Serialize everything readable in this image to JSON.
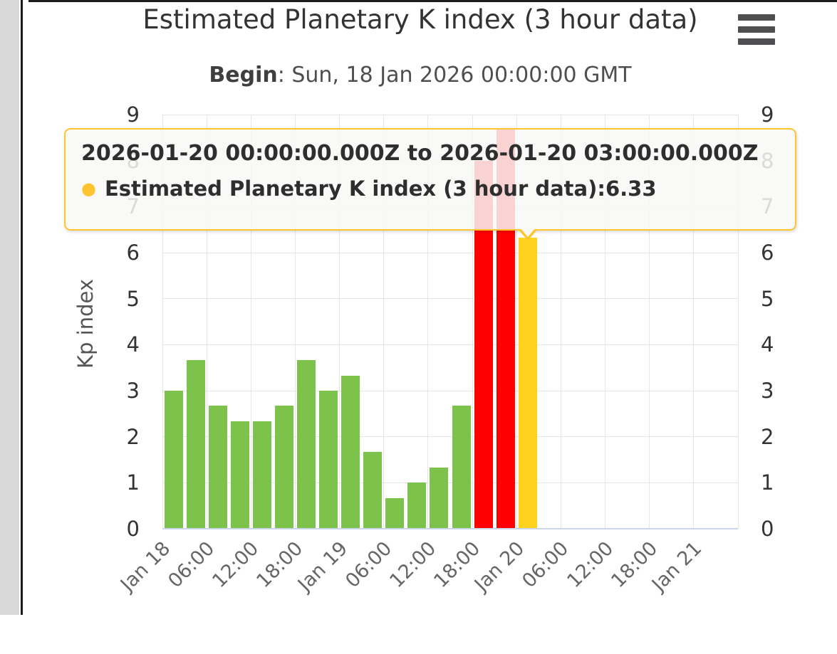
{
  "header": {
    "title": "Estimated Planetary K index (3 hour data)",
    "subtitle": {
      "label": "Begin",
      "rest": ": Sun, 18 Jan 2026 00:00:00 GMT"
    }
  },
  "menu": {
    "icon": "hamburger-menu-icon"
  },
  "tooltip": {
    "header": "2026-01-20 00:00:00.000Z to 2026-01-20 03:00:00.000Z",
    "marker": "●",
    "series_name": "Estimated Planetary K index (3 hour data)",
    "separator": ": ",
    "value": "6.33"
  },
  "colors": {
    "green": "#7DC24B",
    "yellow": "#FFD21E",
    "red": "#FF0000",
    "tooltip_accent": "#FFC42E",
    "grid": "#E6E6E6",
    "axis_line": "#CCD6EB",
    "title_text": "#333333",
    "muted_text": "#666666"
  },
  "chart_data": {
    "type": "bar",
    "title": "Estimated Planetary K index (3 hour data)",
    "subtitle": "Begin: Sun, 18 Jan 2026 00:00:00 GMT",
    "xlabel": "",
    "ylabel": "Kp index",
    "ylim": [
      0,
      9
    ],
    "yticks": [
      0,
      1,
      2,
      3,
      4,
      5,
      6,
      7,
      8,
      9
    ],
    "grid": true,
    "legend": false,
    "interval_hours": 3,
    "x_tick_labels": [
      "Jan 18",
      "06:00",
      "12:00",
      "18:00",
      "Jan 19",
      "06:00",
      "12:00",
      "18:00",
      "Jan 20",
      "06:00",
      "12:00",
      "18:00",
      "Jan 21"
    ],
    "values": [
      3.0,
      3.67,
      2.67,
      2.33,
      2.33,
      2.67,
      3.67,
      3.0,
      3.33,
      1.67,
      0.67,
      1.0,
      1.33,
      2.67,
      8.0,
      8.67,
      6.33
    ],
    "colors": [
      "green",
      "green",
      "green",
      "green",
      "green",
      "green",
      "green",
      "green",
      "green",
      "green",
      "green",
      "green",
      "green",
      "green",
      "red",
      "red",
      "yellow"
    ],
    "hovered_point": {
      "range": "2026-01-20 00:00:00.000Z to 2026-01-20 03:00:00.000Z",
      "value": 6.33
    }
  }
}
